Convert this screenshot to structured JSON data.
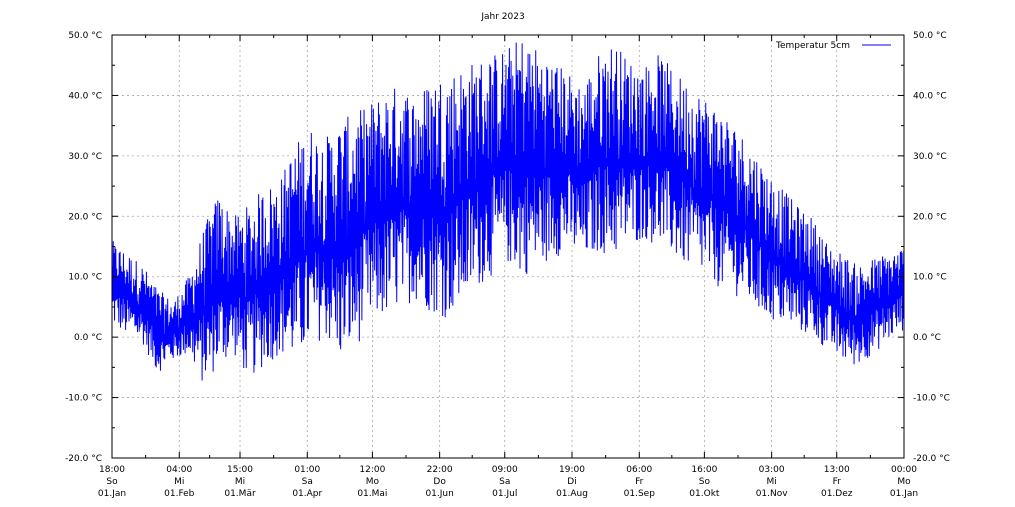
{
  "chart_data": {
    "type": "line",
    "title": "Jahr 2023",
    "xlabel": "",
    "ylabel": "",
    "ylim": [
      -20,
      50
    ],
    "y_ticks": [
      -20,
      -10,
      0,
      10,
      20,
      30,
      40,
      50
    ],
    "y_tick_labels": [
      "-20.0 °C",
      "-10.0 °C",
      "0.0 °C",
      "10.0 °C",
      "20.0 °C",
      "30.0 °C",
      "40.0 °C",
      "50.0 °C"
    ],
    "xlim": [
      "2023-01-01T00:00",
      "2024-01-01T00:00"
    ],
    "x_ticks": [
      {
        "date": "2023-01-01T00:00",
        "time": "18:00",
        "day": "So",
        "label": "01.Jan"
      },
      {
        "date": "2023-02-01T00:00",
        "time": "04:00",
        "day": "Mi",
        "label": "01.Feb"
      },
      {
        "date": "2023-03-01T00:00",
        "time": "15:00",
        "day": "Mi",
        "label": "01.Mär"
      },
      {
        "date": "2023-04-01T00:00",
        "time": "01:00",
        "day": "Sa",
        "label": "01.Apr"
      },
      {
        "date": "2023-05-01T00:00",
        "time": "12:00",
        "day": "Mo",
        "label": "01.Mai"
      },
      {
        "date": "2023-06-01T00:00",
        "time": "22:00",
        "day": "Do",
        "label": "01.Jun"
      },
      {
        "date": "2023-07-01T00:00",
        "time": "09:00",
        "day": "Sa",
        "label": "01.Jul"
      },
      {
        "date": "2023-08-01T00:00",
        "time": "19:00",
        "day": "Di",
        "label": "01.Aug"
      },
      {
        "date": "2023-09-01T00:00",
        "time": "06:00",
        "day": "Fr",
        "label": "01.Sep"
      },
      {
        "date": "2023-10-01T00:00",
        "time": "16:00",
        "day": "So",
        "label": "01.Okt"
      },
      {
        "date": "2023-11-01T00:00",
        "time": "03:00",
        "day": "Mi",
        "label": "01.Nov"
      },
      {
        "date": "2023-12-01T00:00",
        "time": "13:00",
        "day": "Fr",
        "label": "01.Dez"
      },
      {
        "date": "2024-01-01T00:00",
        "time": "00:00",
        "day": "Mo",
        "label": "01.Jan"
      }
    ],
    "grid": true,
    "legend_position": "top-right",
    "series": [
      {
        "name": "Temperatur 5cm",
        "color": "#0000ff",
        "sampling": "daily minimum and maximum (estimated)",
        "x": [
          "2023-01-01",
          "2023-01-08",
          "2023-01-15",
          "2023-01-22",
          "2023-01-29",
          "2023-02-05",
          "2023-02-12",
          "2023-02-19",
          "2023-02-26",
          "2023-03-05",
          "2023-03-12",
          "2023-03-19",
          "2023-03-26",
          "2023-04-02",
          "2023-04-09",
          "2023-04-16",
          "2023-04-23",
          "2023-04-30",
          "2023-05-07",
          "2023-05-14",
          "2023-05-21",
          "2023-05-28",
          "2023-06-04",
          "2023-06-11",
          "2023-06-18",
          "2023-06-25",
          "2023-07-02",
          "2023-07-09",
          "2023-07-16",
          "2023-07-23",
          "2023-07-30",
          "2023-08-06",
          "2023-08-13",
          "2023-08-20",
          "2023-08-27",
          "2023-09-03",
          "2023-09-10",
          "2023-09-17",
          "2023-09-24",
          "2023-10-01",
          "2023-10-08",
          "2023-10-15",
          "2023-10-22",
          "2023-10-29",
          "2023-11-05",
          "2023-11-12",
          "2023-11-19",
          "2023-11-26",
          "2023-12-03",
          "2023-12-10",
          "2023-12-17",
          "2023-12-24",
          "2023-12-31"
        ],
        "y_min": [
          2,
          0,
          -1,
          -6,
          -4,
          -3,
          -8,
          -5,
          -3,
          -7,
          -5,
          -3,
          -4,
          -2,
          0,
          -4,
          -2,
          2,
          3,
          5,
          6,
          4,
          3,
          5,
          8,
          10,
          12,
          10,
          11,
          13,
          14,
          12,
          14,
          13,
          15,
          16,
          15,
          13,
          11,
          10,
          8,
          7,
          5,
          3,
          2,
          1,
          0,
          -2,
          -4,
          -5,
          -3,
          -1,
          1
        ],
        "y_max": [
          16,
          14,
          12,
          8,
          6,
          10,
          18,
          24,
          20,
          22,
          25,
          26,
          32,
          35,
          33,
          36,
          37,
          39,
          41,
          42,
          40,
          43,
          44,
          45,
          46,
          47,
          48,
          50,
          48,
          46,
          44,
          42,
          47,
          49,
          46,
          45,
          47,
          44,
          42,
          40,
          38,
          35,
          32,
          28,
          25,
          22,
          20,
          16,
          14,
          12,
          13,
          14,
          15
        ]
      }
    ]
  }
}
